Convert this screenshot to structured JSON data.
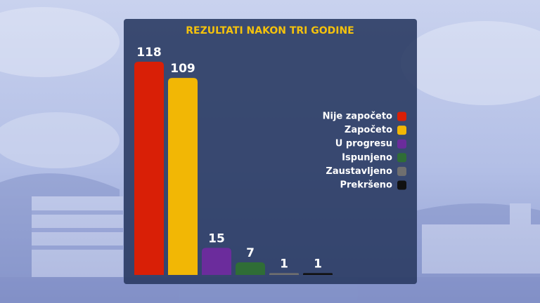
{
  "chart_data": {
    "type": "bar",
    "title": "REZULTATI NAKON TRI GODINE",
    "categories": [
      "Nije započeto",
      "Započeto",
      "U progresu",
      "Ispunjeno",
      "Zaustavljeno",
      "Prekršeno"
    ],
    "values": [
      118,
      109,
      15,
      7,
      1,
      1
    ],
    "colors": [
      "#d91f06",
      "#f2b705",
      "#6b2c9c",
      "#2f6d36",
      "#6f6f6f",
      "#111111"
    ],
    "legend": "right"
  }
}
